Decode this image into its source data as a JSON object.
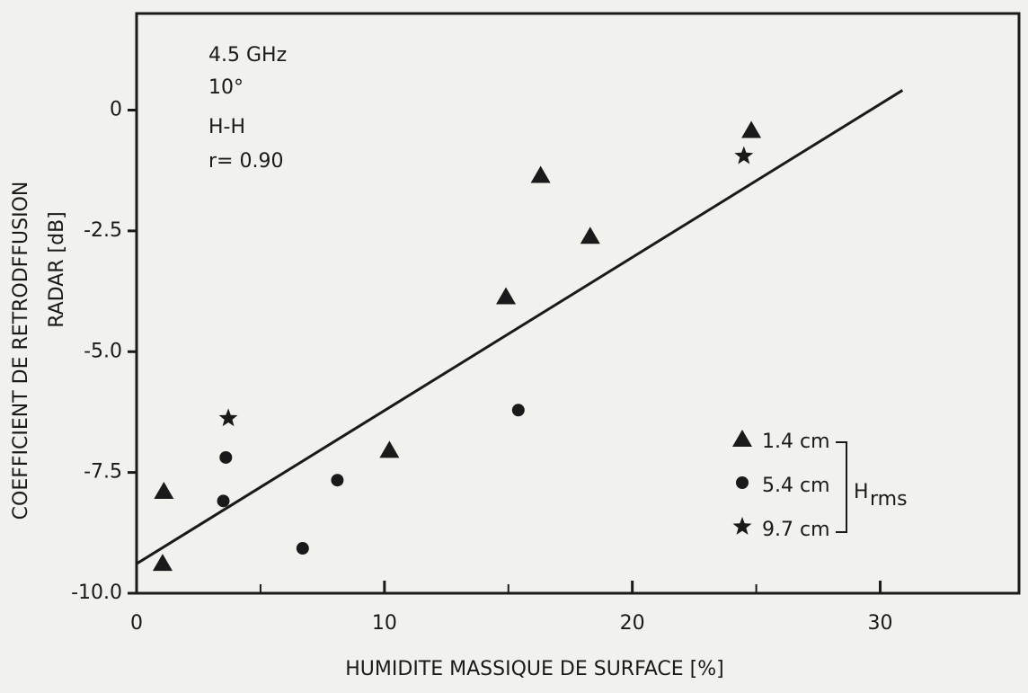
{
  "chart_data": {
    "type": "scatter",
    "x_label": "HUMIDITE  MASSIQUE  DE  SURFACE  [%]",
    "y_label": [
      "COEFFICIENT DE RETRODFFUSION",
      "RADAR [dB]"
    ],
    "annotations": [
      "4.5 GHz",
      "10°",
      "H-H",
      "r= 0.90"
    ],
    "legend_title": "H",
    "legend_title_sub": "rms",
    "xlim": [
      0,
      35.6
    ],
    "ylim": [
      -10,
      2
    ],
    "xticks": [
      0,
      10,
      20,
      30
    ],
    "xminor": [
      5,
      15,
      25
    ],
    "yticks": [
      0,
      -2.5,
      {
        "value": -5,
        "label": "-5.0"
      },
      -7.5,
      {
        "value": -10,
        "label": "-10.0"
      }
    ],
    "color": "#1a1a1a",
    "series": [
      {
        "name": "1.4 cm",
        "marker": "triangle",
        "x": [
          1.1,
          1.05,
          10.2,
          14.9,
          16.3,
          18.3,
          24.8
        ],
        "values": [
          -7.88,
          -9.37,
          -7.03,
          -3.85,
          -1.34,
          -2.6,
          -0.41
        ]
      },
      {
        "name": "5.4 cm",
        "marker": "circle",
        "x": [
          3.6,
          3.5,
          6.7,
          8.1,
          15.4
        ],
        "values": [
          -7.19,
          -8.09,
          -9.07,
          -7.66,
          -6.21
        ]
      },
      {
        "name": "9.7 cm",
        "marker": "star",
        "x": [
          3.7,
          24.5
        ],
        "values": [
          -6.38,
          -0.95
        ]
      }
    ],
    "fit": {
      "x": [
        0,
        30.9
      ],
      "values": [
        -9.39,
        0.41
      ]
    }
  }
}
